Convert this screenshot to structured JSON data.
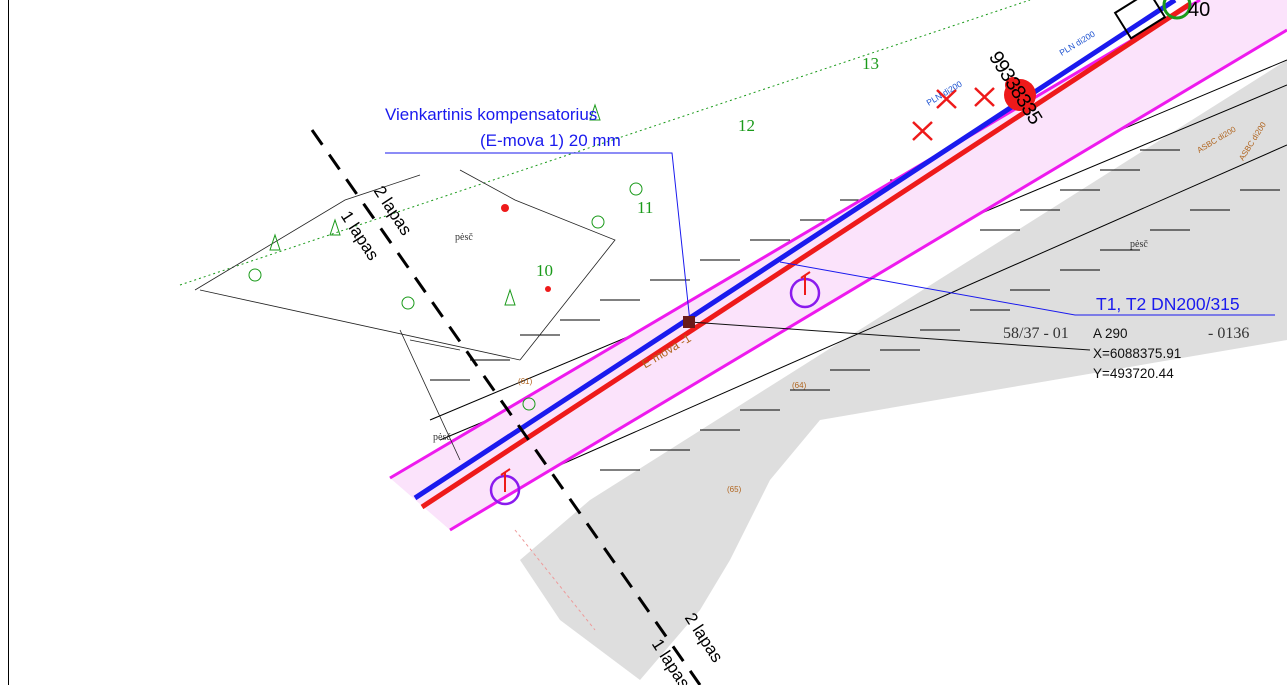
{
  "compensator": {
    "line1": "Vienkartinis kompensatorius",
    "line2": "(E-mova 1) 20 mm"
  },
  "pipe_label": "T1, T2 DN200/315",
  "point": {
    "id": "A 290",
    "x": "X=6088375.91",
    "y": "Y=493720.44"
  },
  "parcel_left": "58/37 - 01",
  "parcel_right": "- 0136",
  "sheet_boundary": {
    "upper_a": "2 lapas",
    "upper_b": "1 lapas",
    "lower_a": "2 lapas",
    "lower_b": "1 lapas"
  },
  "emova_label": "E mova -1",
  "pln_labels": [
    "PLN di200",
    "PLN di200"
  ],
  "asbc_labels": [
    "ASBC di200",
    "ASBC di200"
  ],
  "node_label": "40",
  "node_digits": "99338335",
  "surface_labels": [
    "pėsč",
    "pėsč",
    "pėsč"
  ],
  "survey_numbers": [
    "13",
    "12",
    "11",
    "10"
  ],
  "brown_marks": [
    "(61)",
    "(64)",
    "(65)"
  ],
  "colors": {
    "pipe_supply": "#1a1aee",
    "pipe_return": "#ee1a1a",
    "corridor": "#ee1aee",
    "corridor_fill": "#fbe3fb",
    "road": "#dddddd",
    "survey": "#1a9a1a",
    "chamber": "#8a1aee"
  }
}
